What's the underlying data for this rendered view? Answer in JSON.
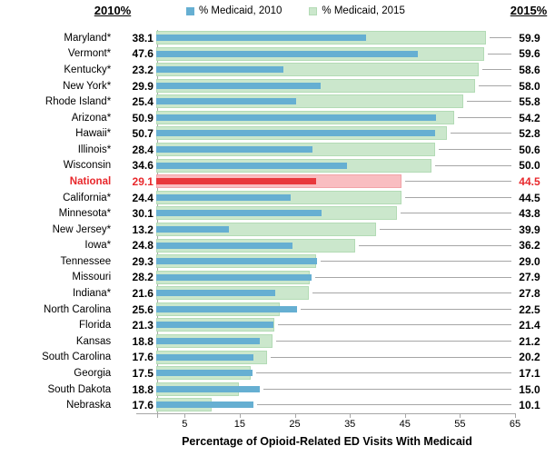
{
  "header": {
    "left_label": "2010%",
    "right_label": "2015%"
  },
  "legend": [
    {
      "label": "% Medicaid, 2010",
      "color": "#66AFD2"
    },
    {
      "label": "% Medicaid, 2015",
      "color": "#CBE7CC"
    }
  ],
  "chart_data": {
    "type": "bar",
    "orientation": "horizontal",
    "title": "",
    "xlabel": "Percentage of Opioid-Related ED Visits With Medicaid",
    "xticks": [
      5,
      15,
      25,
      35,
      45,
      55,
      65
    ],
    "xlim": [
      0,
      65
    ],
    "grid": false,
    "legend_position": "top",
    "highlight_category": "National",
    "categories": [
      "Maryland*",
      "Vermont*",
      "Kentucky*",
      "New York*",
      "Rhode Island*",
      "Arizona*",
      "Hawaii*",
      "Illinois*",
      "Wisconsin",
      "National",
      "California*",
      "Minnesota*",
      "New Jersey*",
      "Iowa*",
      "Tennessee",
      "Missouri",
      "Indiana*",
      "North Carolina",
      "Florida",
      "Kansas",
      "South Carolina",
      "Georgia",
      "South Dakota",
      "Nebraska"
    ],
    "series": [
      {
        "name": "% Medicaid, 2010",
        "values": [
          38.1,
          47.6,
          23.2,
          29.9,
          25.4,
          50.9,
          50.7,
          28.4,
          34.6,
          29.1,
          24.4,
          30.1,
          13.2,
          24.8,
          29.3,
          28.2,
          21.6,
          25.6,
          21.3,
          18.8,
          17.6,
          17.5,
          18.8,
          17.6
        ]
      },
      {
        "name": "% Medicaid, 2015",
        "values": [
          59.9,
          59.6,
          58.6,
          58.0,
          55.8,
          54.2,
          52.8,
          50.6,
          50.0,
          44.5,
          44.5,
          43.8,
          39.9,
          36.2,
          29.0,
          27.9,
          27.8,
          22.5,
          21.4,
          21.2,
          20.2,
          17.1,
          15.0,
          10.1
        ]
      }
    ]
  },
  "colors": {
    "bar_2010": "#66AFD2",
    "bar_2015": "#CBE7CC",
    "bar_2015_border": "#B3DBB5",
    "national_2010": "#E8383C",
    "national_2015": "#F9BDC1",
    "national_2015_border": "#F2A3A8",
    "national_text": "#E8282C",
    "leader_line": "#A6A6A6",
    "axis": "#A6A6A6"
  }
}
